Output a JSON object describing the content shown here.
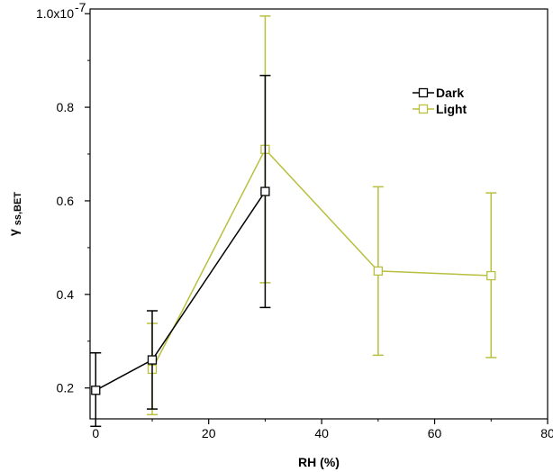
{
  "chart_data": {
    "type": "line",
    "xlabel": "RH (%)",
    "ylabel": "γ",
    "ylabel_sub": "ss,BET",
    "xlim": [
      -1,
      80
    ],
    "ylim": [
      0.134,
      1.01
    ],
    "x_ticks": [
      0,
      20,
      40,
      60,
      80
    ],
    "x_tick_labels": [
      "0",
      "20",
      "40",
      "60",
      "80"
    ],
    "y_ticks": [
      0.2,
      0.4,
      0.6,
      0.8,
      1.0
    ],
    "y_tick_labels": [
      "0.2",
      "0.4",
      "0.6",
      "0.8",
      "1.0x10"
    ],
    "y_top_exponent": "-7",
    "legend_position": "top-right",
    "series": [
      {
        "name": "Dark",
        "color": "#000000",
        "marker": "square",
        "points": [
          {
            "x": 0,
            "y": 0.195,
            "err_low": 0.118,
            "err_high": 0.275
          },
          {
            "x": 10,
            "y": 0.26,
            "err_low": 0.155,
            "err_high": 0.365
          },
          {
            "x": 30,
            "y": 0.62,
            "err_low": 0.372,
            "err_high": 0.868
          }
        ]
      },
      {
        "name": "Light",
        "color": "#b9bf3f",
        "marker": "square",
        "points": [
          {
            "x": 10,
            "y": 0.24,
            "err_low": 0.143,
            "err_high": 0.338
          },
          {
            "x": 30,
            "y": 0.71,
            "err_low": 0.425,
            "err_high": 0.995
          },
          {
            "x": 50,
            "y": 0.45,
            "err_low": 0.27,
            "err_high": 0.63
          },
          {
            "x": 70,
            "y": 0.44,
            "err_low": 0.265,
            "err_high": 0.617
          }
        ]
      }
    ]
  }
}
